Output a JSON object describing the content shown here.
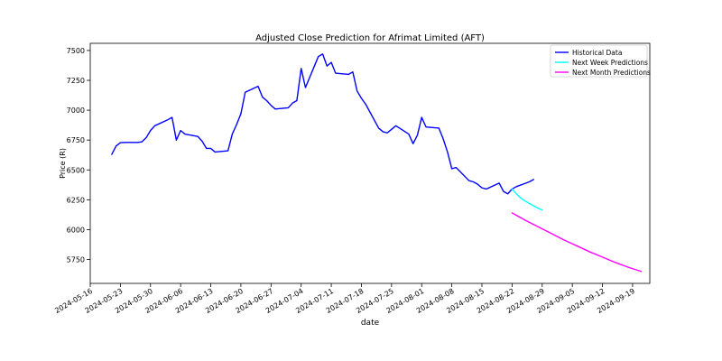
{
  "chart_data": {
    "type": "line",
    "title": "Adjusted Close Prediction for Afrimat Limited (AFT)",
    "xlabel": "date",
    "ylabel": "Price (R)",
    "xlim": [
      "2024-05-16",
      "2024-09-23"
    ],
    "ylim": [
      5550,
      7560
    ],
    "x_ticks": [
      "2024-05-16",
      "2024-05-23",
      "2024-05-30",
      "2024-06-06",
      "2024-06-13",
      "2024-06-20",
      "2024-06-27",
      "2024-07-04",
      "2024-07-11",
      "2024-07-18",
      "2024-07-25",
      "2024-08-01",
      "2024-08-08",
      "2024-08-15",
      "2024-08-22",
      "2024-08-29",
      "2024-09-05",
      "2024-09-12",
      "2024-09-19"
    ],
    "y_ticks": [
      5750,
      6000,
      6250,
      6500,
      6750,
      7000,
      7250,
      7500
    ],
    "legend_position": "top-right",
    "series": [
      {
        "name": "Historical Data",
        "color": "#0000ff",
        "points": [
          [
            "2024-05-21",
            6630
          ],
          [
            "2024-05-22",
            6700
          ],
          [
            "2024-05-23",
            6728
          ],
          [
            "2024-05-24",
            6730
          ],
          [
            "2024-05-27",
            6730
          ],
          [
            "2024-05-28",
            6735
          ],
          [
            "2024-05-29",
            6770
          ],
          [
            "2024-05-30",
            6830
          ],
          [
            "2024-05-31",
            6870
          ],
          [
            "2024-06-03",
            6920
          ],
          [
            "2024-06-04",
            6940
          ],
          [
            "2024-06-05",
            6750
          ],
          [
            "2024-06-06",
            6830
          ],
          [
            "2024-06-07",
            6800
          ],
          [
            "2024-06-10",
            6780
          ],
          [
            "2024-06-11",
            6740
          ],
          [
            "2024-06-12",
            6680
          ],
          [
            "2024-06-13",
            6680
          ],
          [
            "2024-06-14",
            6650
          ],
          [
            "2024-06-17",
            6660
          ],
          [
            "2024-06-18",
            6800
          ],
          [
            "2024-06-19",
            6880
          ],
          [
            "2024-06-20",
            6970
          ],
          [
            "2024-06-21",
            7150
          ],
          [
            "2024-06-24",
            7200
          ],
          [
            "2024-06-25",
            7110
          ],
          [
            "2024-06-26",
            7080
          ],
          [
            "2024-06-27",
            7040
          ],
          [
            "2024-06-28",
            7010
          ],
          [
            "2024-07-01",
            7020
          ],
          [
            "2024-07-02",
            7060
          ],
          [
            "2024-07-03",
            7080
          ],
          [
            "2024-07-04",
            7350
          ],
          [
            "2024-07-05",
            7190
          ],
          [
            "2024-07-08",
            7450
          ],
          [
            "2024-07-09",
            7470
          ],
          [
            "2024-07-10",
            7370
          ],
          [
            "2024-07-11",
            7400
          ],
          [
            "2024-07-12",
            7310
          ],
          [
            "2024-07-15",
            7300
          ],
          [
            "2024-07-16",
            7320
          ],
          [
            "2024-07-17",
            7160
          ],
          [
            "2024-07-18",
            7100
          ],
          [
            "2024-07-19",
            7050
          ],
          [
            "2024-07-22",
            6850
          ],
          [
            "2024-07-23",
            6820
          ],
          [
            "2024-07-24",
            6810
          ],
          [
            "2024-07-25",
            6840
          ],
          [
            "2024-07-26",
            6870
          ],
          [
            "2024-07-29",
            6800
          ],
          [
            "2024-07-30",
            6720
          ],
          [
            "2024-07-31",
            6790
          ],
          [
            "2024-08-01",
            6940
          ],
          [
            "2024-08-02",
            6860
          ],
          [
            "2024-08-05",
            6850
          ],
          [
            "2024-08-06",
            6760
          ],
          [
            "2024-08-07",
            6650
          ],
          [
            "2024-08-08",
            6510
          ],
          [
            "2024-08-09",
            6520
          ],
          [
            "2024-08-12",
            6410
          ],
          [
            "2024-08-13",
            6400
          ],
          [
            "2024-08-14",
            6380
          ],
          [
            "2024-08-15",
            6350
          ],
          [
            "2024-08-16",
            6340
          ],
          [
            "2024-08-19",
            6390
          ],
          [
            "2024-08-20",
            6320
          ],
          [
            "2024-08-21",
            6300
          ],
          [
            "2024-08-22",
            6340
          ],
          [
            "2024-08-23",
            6360
          ],
          [
            "2024-08-26",
            6400
          ],
          [
            "2024-08-27",
            6420
          ]
        ]
      },
      {
        "name": "Next Week Predictions",
        "color": "#00ffff",
        "points": [
          [
            "2024-08-22",
            6340
          ],
          [
            "2024-08-23",
            6300
          ],
          [
            "2024-08-24",
            6265
          ],
          [
            "2024-08-25",
            6240
          ],
          [
            "2024-08-26",
            6220
          ],
          [
            "2024-08-27",
            6200
          ],
          [
            "2024-08-28",
            6180
          ],
          [
            "2024-08-29",
            6165
          ]
        ]
      },
      {
        "name": "Next Month Predictions",
        "color": "#ff00ff",
        "points": [
          [
            "2024-08-22",
            6140
          ],
          [
            "2024-08-25",
            6080
          ],
          [
            "2024-08-28",
            6025
          ],
          [
            "2024-08-31",
            5970
          ],
          [
            "2024-09-03",
            5915
          ],
          [
            "2024-09-06",
            5865
          ],
          [
            "2024-09-09",
            5815
          ],
          [
            "2024-09-12",
            5770
          ],
          [
            "2024-09-15",
            5725
          ],
          [
            "2024-09-18",
            5685
          ],
          [
            "2024-09-21",
            5650
          ]
        ]
      }
    ]
  }
}
